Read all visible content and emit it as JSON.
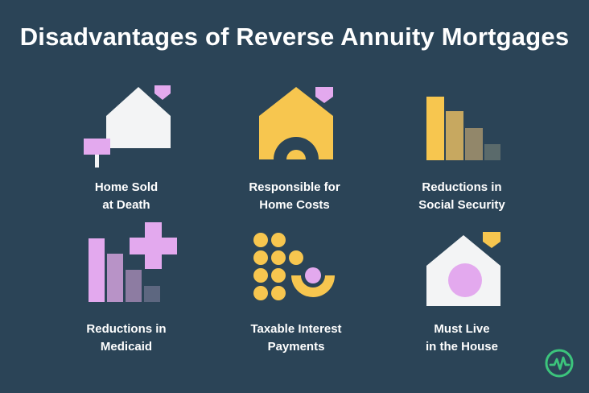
{
  "title": "Disadvantages of Reverse Annuity Mortgages",
  "colors": {
    "background": "#2b4457",
    "white": "#f3f4f5",
    "yellow": "#f7c64f",
    "pink": "#e3a9ee",
    "brand_green": "#3cc47c"
  },
  "items": [
    {
      "icon": "house-sign-icon",
      "line1": "Home Sold",
      "line2": "at Death"
    },
    {
      "icon": "house-arch-icon",
      "line1": "Responsible for",
      "line2": "Home Costs"
    },
    {
      "icon": "declining-bars-icon",
      "line1": "Reductions in",
      "line2": "Social Security"
    },
    {
      "icon": "bars-plus-icon",
      "line1": "Reductions in",
      "line2": "Medicaid"
    },
    {
      "icon": "coins-interest-icon",
      "line1": "Taxable Interest",
      "line2": "Payments"
    },
    {
      "icon": "house-circle-icon",
      "line1": "Must Live",
      "line2": "in the House"
    }
  ],
  "logo": {
    "icon": "wallstreetmojo-logo-icon"
  }
}
